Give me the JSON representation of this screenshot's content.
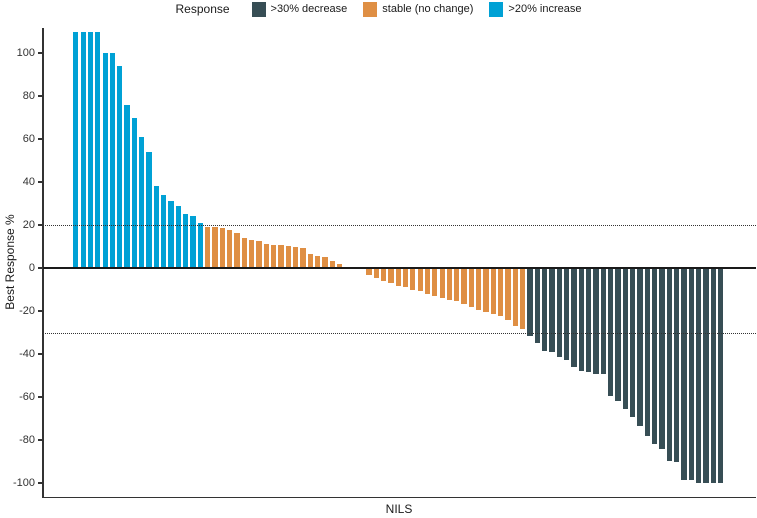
{
  "chart_data": {
    "type": "bar",
    "subtype": "waterfall",
    "title": "",
    "xlabel": "NILS",
    "ylabel": "Best Response %",
    "ylim": [
      -100,
      110
    ],
    "yticks": [
      100,
      80,
      60,
      40,
      20,
      0,
      -20,
      -40,
      -60,
      -80,
      -100
    ],
    "reference_lines": [
      20,
      -30
    ],
    "grid": false,
    "legend": {
      "title": "Response",
      "position": "top",
      "entries": [
        {
          "label": ">30% decrease",
          "key": "decrease"
        },
        {
          "label": "stable (no change)",
          "key": "stable"
        },
        {
          "label": ">20% increase",
          "key": "increase"
        }
      ]
    },
    "colors": {
      "decrease": "#374E55",
      "stable": "#DF8F44",
      "increase": "#00A1D5"
    },
    "category_rule": {
      "increase_above": 20,
      "decrease_below": -30
    },
    "values": [
      110,
      110,
      110,
      110,
      100,
      100,
      94,
      76,
      70,
      61,
      54,
      38,
      34,
      31,
      29,
      25,
      24,
      21,
      19,
      19,
      18.5,
      17.5,
      16.5,
      14,
      13,
      12.7,
      11,
      10.8,
      10.6,
      10.2,
      9.9,
      9.3,
      6.5,
      5.6,
      5,
      3.1,
      1.9,
      0,
      0,
      0,
      -3.1,
      -4.7,
      -5.9,
      -7.1,
      -8.4,
      -9,
      -10.2,
      -10.8,
      -12.1,
      -13,
      -14,
      -14.9,
      -15.5,
      -16.7,
      -18,
      -19.5,
      -20.6,
      -21.4,
      -22.2,
      -24.2,
      -26.8,
      -28.4,
      -31.5,
      -35,
      -38.5,
      -39.2,
      -41.5,
      -42.8,
      -46.2,
      -47.8,
      -48.5,
      -49.3,
      -49.3,
      -59.4,
      -61.7,
      -65.6,
      -69.5,
      -73.3,
      -78,
      -81.9,
      -84.2,
      -89.6,
      -90.4,
      -98.6,
      -98.6,
      -100,
      -100,
      -100,
      -100
    ]
  }
}
